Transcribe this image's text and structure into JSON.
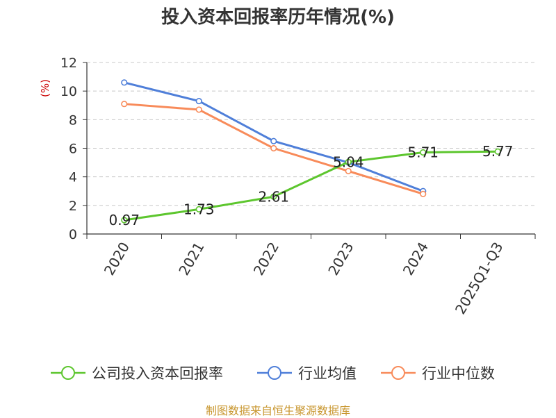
{
  "chart_data": {
    "type": "line",
    "title": "投入资本回报率历年情况(%)",
    "ylabel": "(%)",
    "xlabel": "",
    "ylim": [
      0,
      12
    ],
    "yticks": [
      0,
      2,
      4,
      6,
      8,
      10,
      12
    ],
    "categories": [
      "2020",
      "2021",
      "2022",
      "2023",
      "2024",
      "2025Q1-Q3"
    ],
    "grid": "horizontal dashed",
    "legend_position": "bottom",
    "series": [
      {
        "name": "公司投入资本回报率",
        "color": "#5dc62e",
        "values": [
          0.97,
          1.73,
          2.61,
          5.04,
          5.71,
          5.77
        ],
        "labels": [
          "0.97",
          "1.73",
          "2.61",
          "5.04",
          "5.71",
          "5.77"
        ]
      },
      {
        "name": "行业均值",
        "color": "#4f7fd9",
        "values": [
          10.6,
          9.3,
          6.5,
          5.0,
          3.0,
          null
        ]
      },
      {
        "name": "行业中位数",
        "color": "#f88b5a",
        "values": [
          9.1,
          8.7,
          6.0,
          4.4,
          2.8,
          null
        ]
      }
    ]
  },
  "footer": {
    "source": "制图数据来自恒生聚源数据库"
  }
}
